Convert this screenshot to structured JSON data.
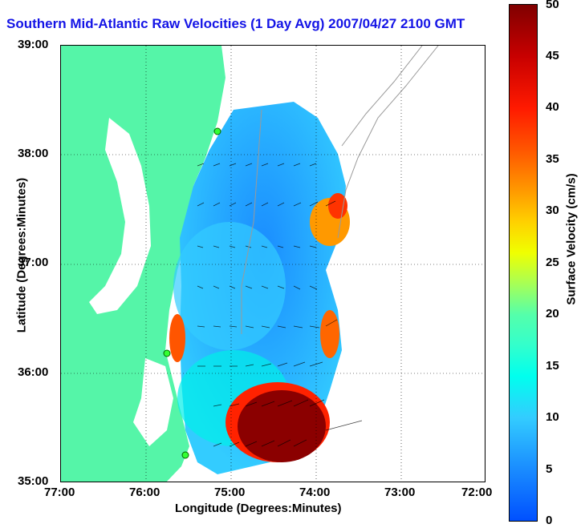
{
  "title": "Southern Mid-Atlantic Raw Velocities (1 Day Avg) 2007/04/27 2100 GMT",
  "axes": {
    "xlabel": "Longitude (Degrees:Minutes)",
    "ylabel": "Latitude (Degrees:Minutes)",
    "xticks": [
      "77:00",
      "76:00",
      "75:00",
      "74:00",
      "73:00",
      "72:00"
    ],
    "yticks": [
      "39:00",
      "38:00",
      "37:00",
      "36:00",
      "35:00"
    ]
  },
  "colorbar": {
    "label": "Surface Velocity (cm/s)",
    "ticks": [
      "50",
      "45",
      "40",
      "35",
      "30",
      "25",
      "20",
      "15",
      "10",
      "5",
      "0"
    ],
    "min": 0,
    "max": 50
  },
  "colors": {
    "land": "#55f5a8",
    "title": "#1414e6",
    "low_speed": "#1a8cff",
    "high_speed": "#8b0000"
  },
  "stations": [
    "green-dot-north",
    "green-dot-middle",
    "green-dot-south"
  ]
}
